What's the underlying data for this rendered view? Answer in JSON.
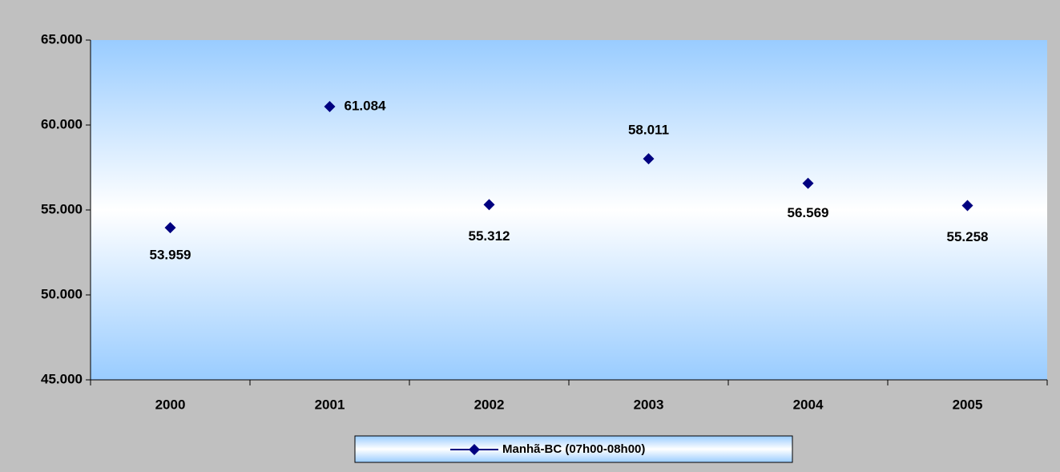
{
  "chart_data": {
    "type": "line",
    "categories": [
      "2000",
      "2001",
      "2002",
      "2003",
      "2004",
      "2005"
    ],
    "series": [
      {
        "name": "Manhã-BC (07h00-08h00)",
        "color": "#000080",
        "values": [
          53959,
          61084,
          55312,
          58011,
          56569,
          55258
        ],
        "value_labels": [
          "53.959",
          "61.084",
          "55.312",
          "58.011",
          "56.569",
          "55.258"
        ]
      }
    ],
    "ylim": [
      45000,
      65000
    ],
    "yticks": [
      {
        "value": 45000,
        "label": "45.000"
      },
      {
        "value": 50000,
        "label": "50.000"
      },
      {
        "value": 55000,
        "label": "55.000"
      },
      {
        "value": 60000,
        "label": "60.000"
      },
      {
        "value": 65000,
        "label": "65.000"
      }
    ],
    "legend": "bottom"
  }
}
